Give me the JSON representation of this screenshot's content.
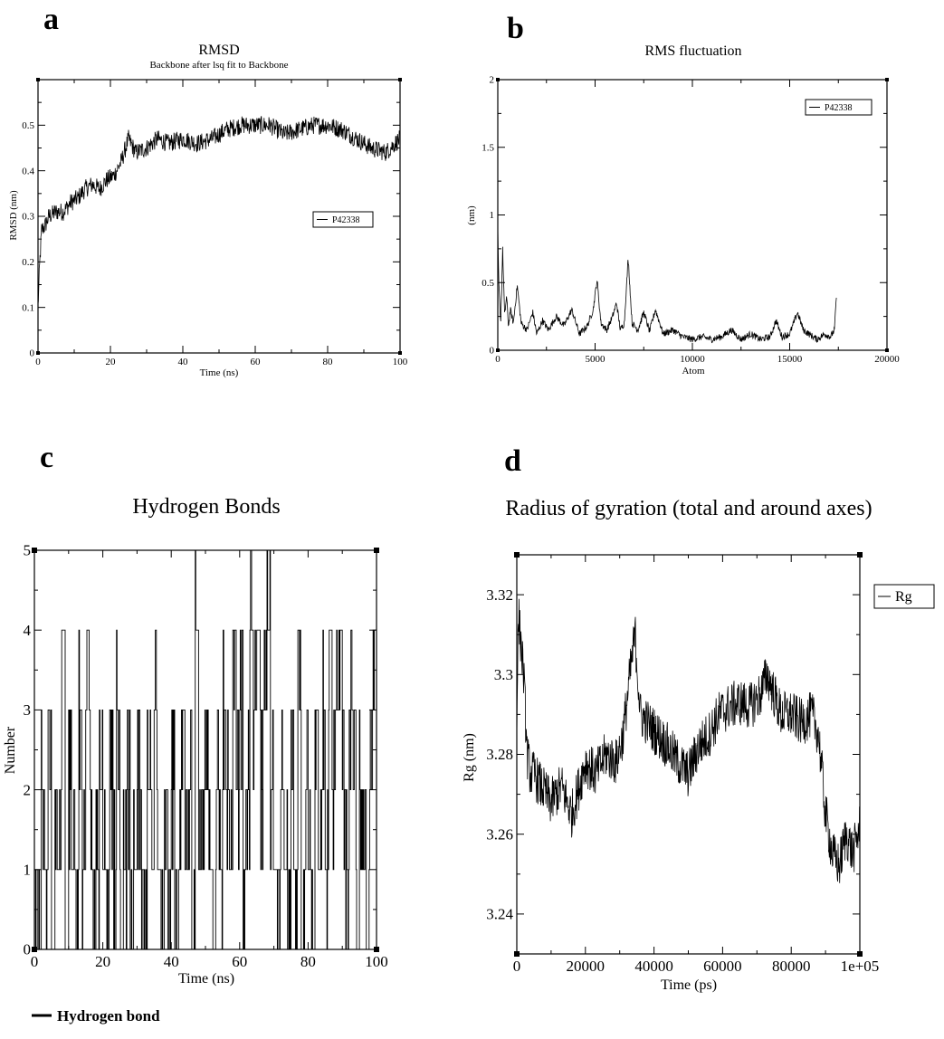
{
  "panel_labels": [
    "a",
    "b",
    "c",
    "d"
  ],
  "footer": {
    "legend_label": "Hydrogen bond"
  },
  "chart_data": [
    {
      "id": "a",
      "type": "line",
      "title": "RMSD",
      "subtitle": "Backbone after lsq fit to Backbone",
      "xlabel": "Time (ns)",
      "ylabel": "RMSD (nm)",
      "xlim": [
        0,
        100
      ],
      "ylim": [
        0,
        0.6
      ],
      "xticks": [
        0,
        20,
        40,
        60,
        80,
        100
      ],
      "yticks": [
        0,
        0.1,
        0.2,
        0.3,
        0.4,
        0.5
      ],
      "ytick_labels": [
        "0",
        "0.1",
        "0.2",
        "0.3",
        "0.4",
        "0.5"
      ],
      "legend_position": "right-middle",
      "series": [
        {
          "name": "P42338",
          "color": "#000000",
          "x": [
            0,
            0.5,
            1,
            2,
            3,
            5,
            7,
            9,
            11,
            13,
            15,
            17,
            19,
            21,
            23,
            25,
            27,
            30,
            33,
            36,
            40,
            44,
            48,
            52,
            56,
            60,
            64,
            68,
            72,
            76,
            80,
            84,
            88,
            92,
            96,
            100
          ],
          "y": [
            0.1,
            0.2,
            0.27,
            0.28,
            0.3,
            0.31,
            0.31,
            0.33,
            0.34,
            0.36,
            0.37,
            0.36,
            0.38,
            0.39,
            0.42,
            0.47,
            0.44,
            0.45,
            0.47,
            0.46,
            0.47,
            0.46,
            0.47,
            0.49,
            0.5,
            0.5,
            0.5,
            0.48,
            0.49,
            0.5,
            0.5,
            0.49,
            0.47,
            0.45,
            0.44,
            0.47
          ],
          "noise": 0.02
        }
      ]
    },
    {
      "id": "b",
      "type": "line",
      "title": "RMS fluctuation",
      "xlabel": "Atom",
      "ylabel": "(nm)",
      "xlim": [
        0,
        20000
      ],
      "ylim": [
        0,
        2
      ],
      "xticks": [
        0,
        5000,
        10000,
        15000,
        20000
      ],
      "yticks": [
        0,
        0.5,
        1,
        1.5,
        2
      ],
      "ytick_labels": [
        "0",
        "0.5",
        "1",
        "1.5",
        "2"
      ],
      "legend_position": "top-right",
      "series": [
        {
          "name": "P42338",
          "color": "#000000",
          "x": [
            0,
            50,
            150,
            250,
            350,
            450,
            550,
            650,
            800,
            1000,
            1200,
            1500,
            1800,
            2000,
            2300,
            2600,
            3000,
            3400,
            3800,
            4200,
            4600,
            4900,
            5100,
            5300,
            5600,
            5900,
            6100,
            6300,
            6500,
            6700,
            6900,
            7200,
            7500,
            7800,
            8100,
            8500,
            9000,
            9500,
            10000,
            10500,
            11000,
            11500,
            12000,
            12500,
            13000,
            13500,
            14000,
            14300,
            14600,
            15000,
            15400,
            15700,
            16000,
            16400,
            16800,
            17100,
            17300,
            17400
          ],
          "y": [
            0.9,
            0.5,
            0.2,
            0.75,
            0.25,
            0.4,
            0.18,
            0.3,
            0.2,
            0.48,
            0.2,
            0.15,
            0.28,
            0.12,
            0.22,
            0.15,
            0.25,
            0.18,
            0.3,
            0.12,
            0.18,
            0.3,
            0.52,
            0.2,
            0.15,
            0.25,
            0.35,
            0.15,
            0.2,
            0.68,
            0.2,
            0.15,
            0.28,
            0.14,
            0.3,
            0.12,
            0.15,
            0.1,
            0.08,
            0.1,
            0.08,
            0.1,
            0.15,
            0.08,
            0.12,
            0.08,
            0.1,
            0.22,
            0.1,
            0.12,
            0.28,
            0.15,
            0.12,
            0.08,
            0.12,
            0.1,
            0.15,
            0.4
          ],
          "noise": 0.025
        }
      ]
    },
    {
      "id": "c",
      "type": "line",
      "title": "Hydrogen Bonds",
      "xlabel": "Time (ns)",
      "ylabel": "Number",
      "xlim": [
        0,
        100
      ],
      "ylim": [
        0,
        5
      ],
      "xticks": [
        0,
        20,
        40,
        60,
        80,
        100
      ],
      "yticks": [
        0,
        1,
        2,
        3,
        4,
        5
      ],
      "ytick_labels": [
        "0",
        "1",
        "2",
        "3",
        "4",
        "5"
      ],
      "legend": "none",
      "series": [
        {
          "name": "Hydrogen bond",
          "color": "#000000",
          "step": true,
          "x": [
            0,
            1,
            2,
            3,
            4,
            5,
            6,
            7,
            8,
            9,
            10,
            11,
            12,
            13,
            14,
            15,
            16,
            17,
            18,
            19,
            20,
            21,
            22,
            23,
            24,
            25,
            26,
            27,
            28,
            29,
            30,
            31,
            32,
            33,
            34,
            35,
            36,
            37,
            38,
            39,
            40,
            41,
            42,
            43,
            44,
            45,
            46,
            47,
            48,
            49,
            50,
            51,
            52,
            53,
            54,
            55,
            56,
            57,
            58,
            59,
            60,
            61,
            62,
            63,
            64,
            65,
            66,
            67,
            68,
            69,
            70,
            71,
            72,
            73,
            74,
            75,
            76,
            77,
            78,
            79,
            80,
            81,
            82,
            83,
            84,
            85,
            86,
            87,
            88,
            89,
            90,
            91,
            92,
            93,
            94,
            95,
            96,
            97,
            98,
            99,
            100
          ],
          "y": [
            1,
            0,
            2,
            1,
            3,
            0,
            2,
            1,
            4,
            0,
            2,
            1,
            0,
            3,
            1,
            4,
            2,
            0,
            1,
            2,
            1,
            0,
            2,
            1,
            3,
            0,
            1,
            2,
            0,
            1,
            2,
            1,
            0,
            2,
            1,
            3,
            1,
            0,
            2,
            1,
            2,
            0,
            1,
            3,
            1,
            2,
            0,
            5,
            1,
            2,
            3,
            1,
            0,
            2,
            1,
            3,
            2,
            1,
            4,
            2,
            3,
            1,
            2,
            5,
            3,
            4,
            2,
            3,
            5,
            2,
            1,
            0,
            2,
            1,
            0,
            2,
            1,
            3,
            0,
            2,
            1,
            0,
            2,
            1,
            3,
            1,
            4,
            2,
            3,
            4,
            2,
            1,
            3,
            2,
            0,
            2,
            1,
            0,
            3,
            4,
            0
          ],
          "density": 6
        }
      ]
    },
    {
      "id": "d",
      "type": "line",
      "title": "Radius of gyration (total and around axes)",
      "xlabel": "Time (ps)",
      "ylabel": "Rg (nm)",
      "xlim": [
        0,
        100000
      ],
      "ylim": [
        3.23,
        3.33
      ],
      "xticks": [
        0,
        20000,
        40000,
        60000,
        80000,
        100000
      ],
      "xtick_labels": [
        "0",
        "20000",
        "40000",
        "60000",
        "80000",
        "1e+05"
      ],
      "yticks": [
        3.24,
        3.26,
        3.28,
        3.3,
        3.32
      ],
      "ytick_labels": [
        "3.24",
        "3.26",
        "3.28",
        "3.3",
        "3.32"
      ],
      "legend_position": "outside-top-right",
      "series": [
        {
          "name": "Rg",
          "color": "#000000",
          "x": [
            0,
            500,
            1000,
            2000,
            3000,
            4000,
            5000,
            7000,
            10000,
            13000,
            16000,
            20000,
            23000,
            26000,
            29000,
            31000,
            33000,
            34500,
            36000,
            38000,
            41000,
            44000,
            47000,
            50000,
            53000,
            56000,
            59000,
            62000,
            65000,
            68000,
            71000,
            73000,
            75000,
            77000,
            80000,
            83000,
            86000,
            88000,
            90000,
            92000,
            94000,
            96000,
            98000,
            100000
          ],
          "y": [
            3.29,
            3.315,
            3.31,
            3.3,
            3.28,
            3.275,
            3.275,
            3.272,
            3.268,
            3.272,
            3.265,
            3.278,
            3.275,
            3.28,
            3.278,
            3.285,
            3.3,
            3.31,
            3.29,
            3.288,
            3.285,
            3.282,
            3.278,
            3.275,
            3.282,
            3.285,
            3.29,
            3.292,
            3.293,
            3.292,
            3.295,
            3.3,
            3.295,
            3.29,
            3.29,
            3.288,
            3.29,
            3.285,
            3.265,
            3.255,
            3.252,
            3.26,
            3.255,
            3.262
          ],
          "noise": 0.006
        }
      ]
    }
  ]
}
